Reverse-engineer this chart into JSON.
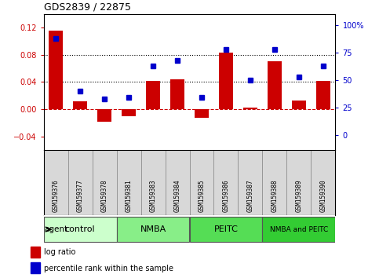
{
  "title": "GDS2839 / 22875",
  "samples": [
    "GSM159376",
    "GSM159377",
    "GSM159378",
    "GSM159381",
    "GSM159383",
    "GSM159384",
    "GSM159385",
    "GSM159386",
    "GSM159387",
    "GSM159388",
    "GSM159389",
    "GSM159390"
  ],
  "log_ratio": [
    0.115,
    0.012,
    -0.018,
    -0.01,
    0.042,
    0.044,
    -0.012,
    0.083,
    0.002,
    0.071,
    0.013,
    0.042
  ],
  "percentile_rank": [
    88,
    40,
    33,
    34,
    63,
    68,
    34,
    78,
    50,
    78,
    53,
    63
  ],
  "bar_color": "#cc0000",
  "dot_color": "#0000cc",
  "groups": [
    {
      "label": "control",
      "start": 0,
      "end": 3,
      "color": "#ccffcc"
    },
    {
      "label": "NMBA",
      "start": 3,
      "end": 6,
      "color": "#66ee66"
    },
    {
      "label": "PEITC",
      "start": 6,
      "end": 9,
      "color": "#55dd55"
    },
    {
      "label": "NMBA and PEITC",
      "start": 9,
      "end": 12,
      "color": "#33cc33"
    }
  ],
  "ylim_left": [
    -0.06,
    0.14
  ],
  "ylim_right": [
    -13.63636,
    110
  ],
  "yticks_left": [
    -0.04,
    0,
    0.04,
    0.08,
    0.12
  ],
  "yticks_right": [
    0,
    25,
    50,
    75,
    100
  ],
  "hline_dotted": [
    0.04,
    0.08
  ],
  "hline_zero_color": "#cc0000",
  "background_color": "#ffffff",
  "legend_log_ratio": "log ratio",
  "legend_percentile": "percentile rank within the sample"
}
